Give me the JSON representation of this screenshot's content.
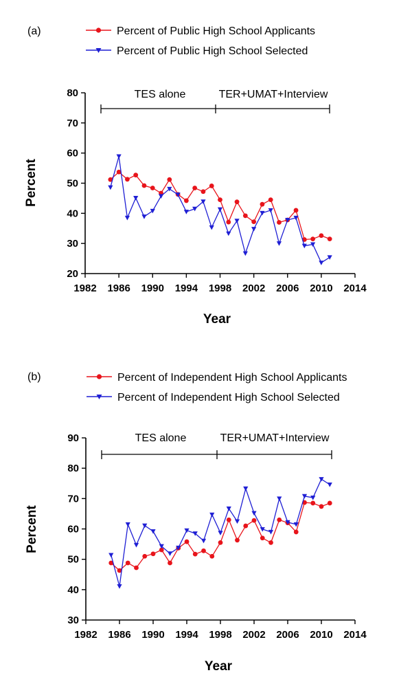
{
  "chart_data": [
    {
      "type": "line",
      "panel_label": "(a)",
      "xlabel": "Year",
      "ylabel": "Percent",
      "xlim": [
        1982,
        2014
      ],
      "ylim": [
        20,
        80
      ],
      "xticks": [
        1982,
        1986,
        1990,
        1994,
        1998,
        2002,
        2006,
        2010,
        2014
      ],
      "yticks": [
        20,
        30,
        40,
        50,
        60,
        70,
        80
      ],
      "phases": [
        {
          "label": "TES alone",
          "start": 1984,
          "end": 1998
        },
        {
          "label": "TER+UMAT+Interview",
          "start": 1998,
          "end": 2011
        }
      ],
      "legend_position": "top",
      "series": [
        {
          "name": "Percent of Public High School Applicants",
          "color": "#e8141b",
          "marker": "circle",
          "x": [
            1985,
            1986,
            1987,
            1988,
            1989,
            1990,
            1991,
            1992,
            1993,
            1994,
            1995,
            1996,
            1997,
            1998,
            1999,
            2000,
            2001,
            2002,
            2003,
            2004,
            2005,
            2006,
            2007,
            2008,
            2009,
            2010,
            2011
          ],
          "values": [
            51.2,
            53.7,
            51.3,
            52.7,
            49.2,
            48.4,
            46.7,
            51.2,
            46.3,
            44.2,
            48.4,
            47.2,
            49.1,
            44.5,
            37.1,
            43.8,
            39.2,
            37.2,
            43.0,
            44.5,
            37.0,
            37.8,
            41.0,
            31.3,
            31.5,
            32.6,
            31.5
          ]
        },
        {
          "name": "Percent of Public High School  Selected",
          "color": "#1f1fd4",
          "marker": "triangle-down",
          "x": [
            1985,
            1986,
            1987,
            1988,
            1989,
            1990,
            1991,
            1992,
            1993,
            1994,
            1995,
            1996,
            1997,
            1998,
            1999,
            2000,
            2001,
            2002,
            2003,
            2004,
            2005,
            2006,
            2007,
            2008,
            2009,
            2010,
            2011
          ],
          "values": [
            48.6,
            58.9,
            38.5,
            45.1,
            38.9,
            40.8,
            45.7,
            48.1,
            46.2,
            40.5,
            41.5,
            43.9,
            35.3,
            41.3,
            33.3,
            37.5,
            26.7,
            34.8,
            40.1,
            41.0,
            30.0,
            37.8,
            38.5,
            29.2,
            29.7,
            23.6,
            25.4
          ]
        }
      ]
    },
    {
      "type": "line",
      "panel_label": "(b)",
      "xlabel": "Year",
      "ylabel": "Percent",
      "xlim": [
        1982,
        2014
      ],
      "ylim": [
        30,
        90
      ],
      "xticks": [
        1982,
        1986,
        1990,
        1994,
        1998,
        2002,
        2006,
        2010,
        2014
      ],
      "yticks": [
        30,
        40,
        50,
        60,
        70,
        80,
        90
      ],
      "phases": [
        {
          "label": "TES alone",
          "start": 1984,
          "end": 1998
        },
        {
          "label": "TER+UMAT+Interview",
          "start": 1998,
          "end": 2011
        }
      ],
      "legend_position": "top",
      "series": [
        {
          "name": "Percent of  Independent High School Applicants",
          "color": "#e8141b",
          "marker": "circle",
          "x": [
            1985,
            1986,
            1987,
            1988,
            1989,
            1990,
            1991,
            1992,
            1993,
            1994,
            1995,
            1996,
            1997,
            1998,
            1999,
            2000,
            2001,
            2002,
            2003,
            2004,
            2005,
            2006,
            2007,
            2008,
            2009,
            2010,
            2011
          ],
          "values": [
            48.8,
            46.3,
            48.8,
            47.2,
            51.0,
            51.8,
            53.1,
            48.8,
            53.7,
            55.8,
            51.7,
            52.8,
            51.0,
            55.5,
            63.0,
            56.3,
            61.0,
            62.8,
            57.0,
            55.5,
            63.0,
            62.0,
            59.0,
            68.7,
            68.5,
            67.4,
            68.5
          ]
        },
        {
          "name": "Percent of Independent High School Selected",
          "color": "#1f1fd4",
          "marker": "triangle-down",
          "x": [
            1985,
            1986,
            1987,
            1988,
            1989,
            1990,
            1991,
            1992,
            1993,
            1994,
            1995,
            1996,
            1997,
            1998,
            1999,
            2000,
            2001,
            2002,
            2003,
            2004,
            2005,
            2006,
            2007,
            2008,
            2009,
            2010,
            2011
          ],
          "values": [
            51.4,
            41.1,
            61.5,
            54.7,
            61.1,
            59.2,
            54.3,
            51.9,
            53.8,
            59.5,
            58.5,
            56.1,
            64.7,
            58.7,
            66.7,
            62.5,
            73.3,
            65.2,
            59.9,
            59.0,
            70.0,
            62.2,
            61.5,
            70.8,
            70.3,
            76.4,
            74.6
          ]
        }
      ]
    }
  ]
}
